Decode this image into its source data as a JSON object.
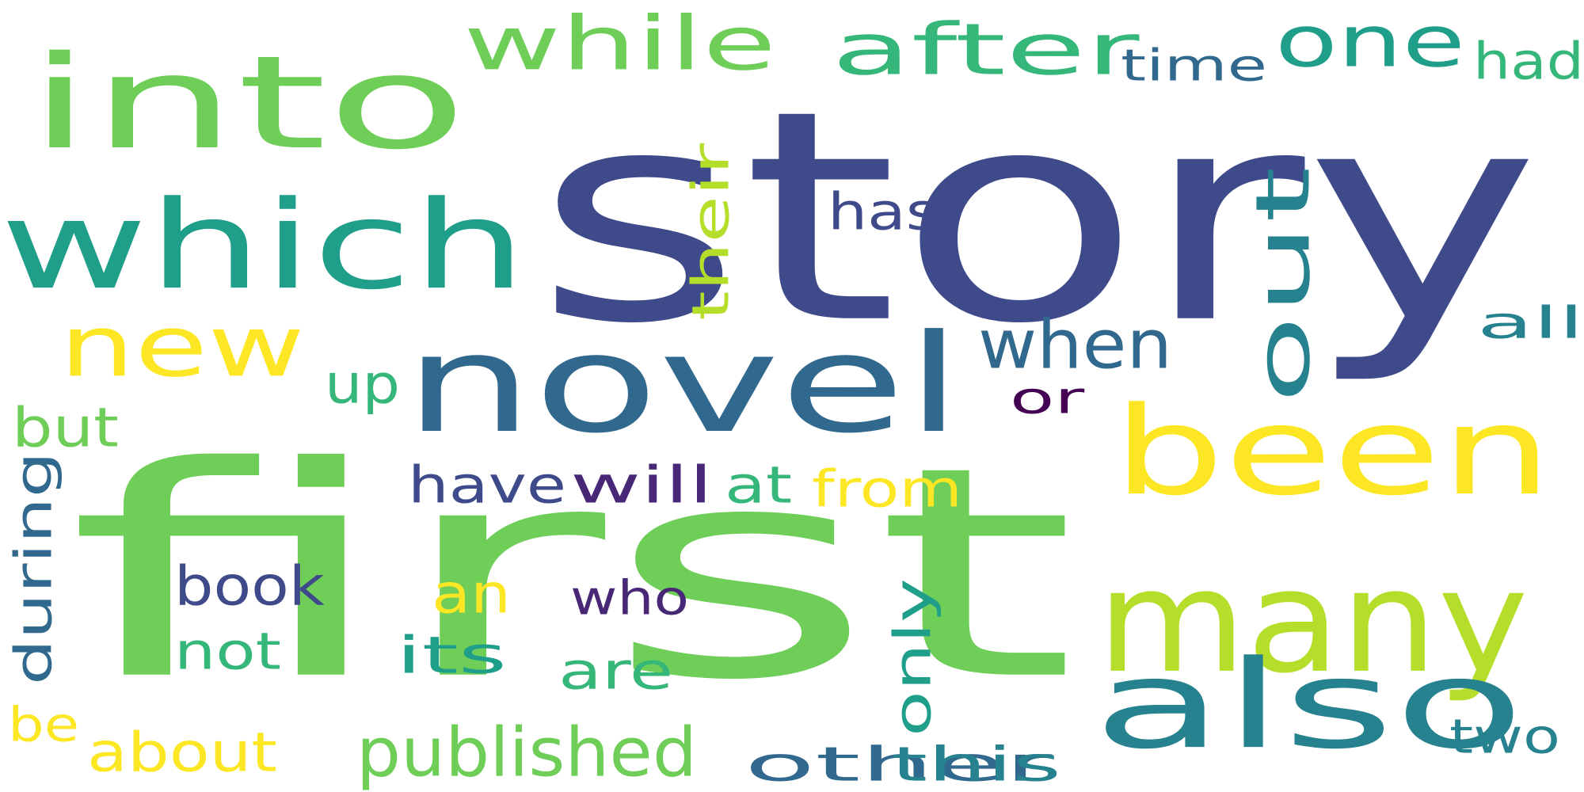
{
  "palette": {
    "dark_purple": "#440154",
    "indigo": "#482777",
    "slate_blue": "#3e4a89",
    "steel_blue": "#31688e",
    "teal_blue": "#26828e",
    "teal": "#1f9e89",
    "green_teal": "#35b779",
    "green": "#6ece58",
    "lime": "#b5de2b",
    "yellow": "#fde725",
    "background": "#ffffff"
  },
  "words": [
    {
      "text": "story",
      "color": "slate_blue",
      "vertical": false
    },
    {
      "text": "first",
      "color": "green",
      "vertical": false
    },
    {
      "text": "into",
      "color": "green",
      "vertical": false
    },
    {
      "text": "which",
      "color": "teal",
      "vertical": false
    },
    {
      "text": "novel",
      "color": "steel_blue",
      "vertical": false
    },
    {
      "text": "been",
      "color": "yellow",
      "vertical": false
    },
    {
      "text": "many",
      "color": "lime",
      "vertical": false
    },
    {
      "text": "also",
      "color": "teal_blue",
      "vertical": false
    },
    {
      "text": "new",
      "color": "yellow",
      "vertical": false
    },
    {
      "text": "out",
      "color": "teal_blue",
      "vertical": true
    },
    {
      "text": "after",
      "color": "green_teal",
      "vertical": false
    },
    {
      "text": "while",
      "color": "green",
      "vertical": false
    },
    {
      "text": "one",
      "color": "teal",
      "vertical": false
    },
    {
      "text": "when",
      "color": "steel_blue",
      "vertical": false
    },
    {
      "text": "published",
      "color": "green",
      "vertical": false
    },
    {
      "text": "have",
      "color": "slate_blue",
      "vertical": false
    },
    {
      "text": "will",
      "color": "indigo",
      "vertical": false
    },
    {
      "text": "from",
      "color": "yellow",
      "vertical": false
    },
    {
      "text": "book",
      "color": "slate_blue",
      "vertical": false
    },
    {
      "text": "during",
      "color": "steel_blue",
      "vertical": true
    },
    {
      "text": "their",
      "color": "lime",
      "vertical": true
    },
    {
      "text": "only",
      "color": "teal",
      "vertical": true
    },
    {
      "text": "other",
      "color": "steel_blue",
      "vertical": false
    },
    {
      "text": "this",
      "color": "teal_blue",
      "vertical": false
    },
    {
      "text": "about",
      "color": "yellow",
      "vertical": false
    },
    {
      "text": "not",
      "color": "green_teal",
      "vertical": false
    },
    {
      "text": "its",
      "color": "teal",
      "vertical": false
    },
    {
      "text": "are",
      "color": "green_teal",
      "vertical": false
    },
    {
      "text": "who",
      "color": "indigo",
      "vertical": false
    },
    {
      "text": "at",
      "color": "green_teal",
      "vertical": false
    },
    {
      "text": "up",
      "color": "green_teal",
      "vertical": false
    },
    {
      "text": "but",
      "color": "green",
      "vertical": false
    },
    {
      "text": "an",
      "color": "yellow",
      "vertical": false
    },
    {
      "text": "has",
      "color": "slate_blue",
      "vertical": false
    },
    {
      "text": "time",
      "color": "steel_blue",
      "vertical": false
    },
    {
      "text": "had",
      "color": "green_teal",
      "vertical": false
    },
    {
      "text": "all",
      "color": "teal_blue",
      "vertical": false
    },
    {
      "text": "two",
      "color": "teal_blue",
      "vertical": false
    },
    {
      "text": "be",
      "color": "yellow",
      "vertical": false
    },
    {
      "text": "or",
      "color": "dark_purple",
      "vertical": false
    }
  ]
}
